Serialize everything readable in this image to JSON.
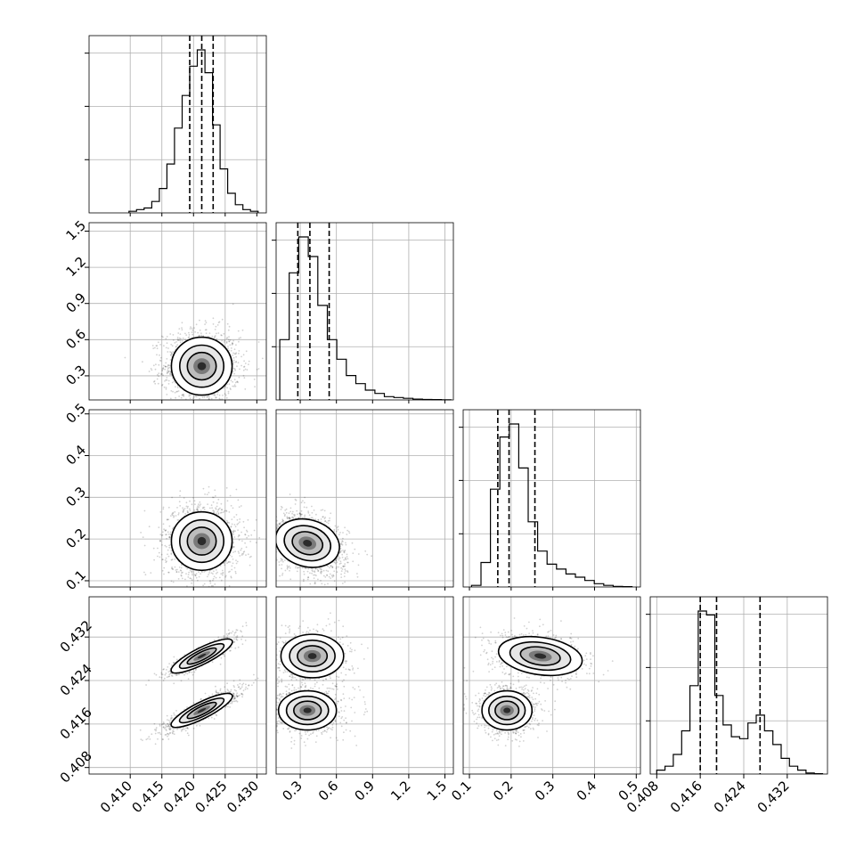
{
  "chart_data": {
    "type": "scatter",
    "title": "",
    "parameters": [
      {
        "xticks": [
          "0.410",
          "0.415",
          "0.420",
          "0.425",
          "0.430"
        ],
        "range": [
          0.4035,
          0.4315
        ],
        "quantiles": [
          0.4194,
          0.4213,
          0.4231
        ]
      },
      {
        "ticks": [
          "0.3",
          "0.6",
          "0.9",
          "1.2",
          "1.5"
        ],
        "range": [
          0.1,
          1.57
        ],
        "quantiles": [
          0.28,
          0.38,
          0.54
        ]
      },
      {
        "ticks": [
          "0.1",
          "0.2",
          "0.3",
          "0.4",
          "0.5"
        ],
        "range": [
          0.085,
          0.51
        ],
        "quantiles": [
          0.168,
          0.195,
          0.257
        ]
      },
      {
        "ticks": [
          "0.408",
          "0.416",
          "0.424",
          "0.432"
        ],
        "range": [
          0.4068,
          0.4394
        ],
        "quantiles": [
          0.416,
          0.419,
          0.427
        ]
      }
    ],
    "histograms": [
      {
        "counts": [
          1,
          2,
          3,
          7,
          15,
          30,
          52,
          72,
          90,
          100,
          86,
          54,
          27,
          12,
          5,
          2,
          1
        ]
      },
      {
        "counts": [
          37,
          78,
          100,
          88,
          58,
          37,
          25,
          15,
          10,
          6,
          4,
          2,
          1.5,
          1,
          0.5,
          0.3,
          0.2,
          0.1
        ]
      },
      {
        "counts": [
          1,
          15,
          60,
          92,
          100,
          73,
          40,
          22,
          14,
          11,
          8,
          6,
          4,
          2,
          1,
          0.4,
          0.2
        ]
      },
      {
        "counts": [
          2,
          4,
          10,
          22,
          45,
          83,
          81,
          40,
          25,
          19,
          18,
          26,
          30,
          22,
          15,
          8,
          4,
          2,
          0.5,
          0.2
        ]
      }
    ],
    "correlations": [
      {
        "pair": "p2-p1",
        "modes": [
          {
            "x": 0.4213,
            "y": 0.38,
            "sx": 0.0024,
            "sy": 0.12,
            "w": 1
          }
        ]
      },
      {
        "pair": "p3-p1",
        "modes": [
          {
            "x": 0.4213,
            "y": 0.195,
            "sx": 0.0024,
            "sy": 0.035,
            "w": 1
          }
        ]
      },
      {
        "pair": "p3-p2",
        "modes": [
          {
            "x": 0.36,
            "y": 0.19,
            "sx": 0.13,
            "sy": 0.03,
            "w": 1,
            "rho": -0.35
          }
        ]
      },
      {
        "pair": "p4-p1",
        "modes": [
          {
            "x": 0.4213,
            "y": 0.4185,
            "sx": 0.0024,
            "sy": 0.0016,
            "w": 0.6,
            "rho": 0.88
          },
          {
            "x": 0.4213,
            "y": 0.4285,
            "sx": 0.0024,
            "sy": 0.0016,
            "w": 0.4,
            "rho": 0.88
          }
        ]
      },
      {
        "pair": "p4-p2",
        "modes": [
          {
            "x": 0.36,
            "y": 0.4185,
            "sx": 0.12,
            "sy": 0.0018,
            "w": 0.6
          },
          {
            "x": 0.4,
            "y": 0.4285,
            "sx": 0.13,
            "sy": 0.002,
            "w": 0.4
          }
        ]
      },
      {
        "pair": "p4-p3",
        "modes": [
          {
            "x": 0.19,
            "y": 0.4185,
            "sx": 0.03,
            "sy": 0.0018,
            "w": 0.6
          },
          {
            "x": 0.27,
            "y": 0.4285,
            "sx": 0.05,
            "sy": 0.0018,
            "w": 0.4,
            "rho": -0.3
          }
        ]
      }
    ],
    "grid": true,
    "contour_levels": [
      0.15,
      0.45,
      0.85
    ]
  }
}
